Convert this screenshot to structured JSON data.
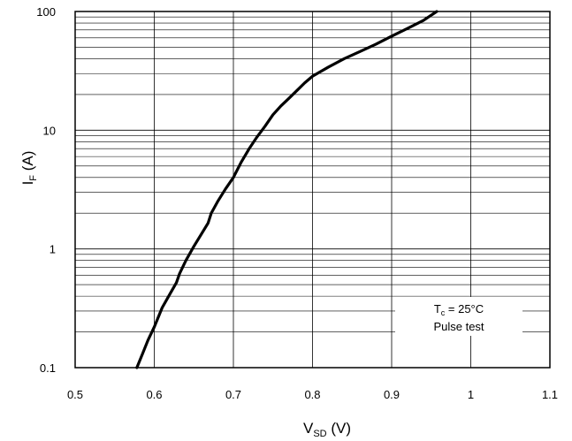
{
  "chart_data": {
    "type": "line",
    "x_scale": "linear",
    "y_scale": "log",
    "xlim": [
      0.5,
      1.1
    ],
    "ylim": [
      0.1,
      100
    ],
    "x_ticks": [
      "0.5",
      "0.6",
      "0.7",
      "0.8",
      "0.9",
      "1",
      "1.1"
    ],
    "y_ticks": [
      "0.1",
      "1",
      "10",
      "100"
    ],
    "xlabel": {
      "main": "V",
      "sub": "SD",
      "unit": " (V)"
    },
    "ylabel": {
      "main": "I",
      "sub": "F",
      "unit": " (A)"
    },
    "grid": true,
    "annotation": {
      "line1_main": "T",
      "line1_sub": "c",
      "line1_rest": " = 25°C",
      "line2": "Pulse test",
      "placement": "bottom-right"
    },
    "series": [
      {
        "x": [
          0.578,
          0.585,
          0.592,
          0.6,
          0.61,
          0.62,
          0.628,
          0.632,
          0.64,
          0.65,
          0.66,
          0.668,
          0.672,
          0.68,
          0.69,
          0.7,
          0.71,
          0.72,
          0.73,
          0.74,
          0.75,
          0.76,
          0.77,
          0.78,
          0.79,
          0.8,
          0.82,
          0.84,
          0.86,
          0.88,
          0.9,
          0.92,
          0.94,
          0.957
        ],
        "y": [
          0.1,
          0.13,
          0.17,
          0.22,
          0.32,
          0.42,
          0.52,
          0.62,
          0.8,
          1.05,
          1.35,
          1.65,
          2.0,
          2.5,
          3.2,
          4.0,
          5.4,
          7.0,
          8.8,
          10.8,
          13.5,
          16.0,
          18.5,
          21.5,
          25.0,
          28.5,
          34.0,
          40.0,
          46.0,
          53.0,
          62.0,
          72.0,
          84.0,
          100.0
        ]
      }
    ]
  }
}
